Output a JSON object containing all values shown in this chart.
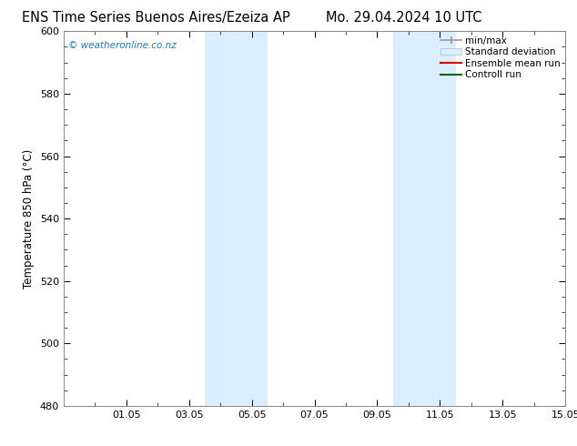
{
  "title_left": "ENS Time Series Buenos Aires/Ezeiza AP",
  "title_right": "Mo. 29.04.2024 10 UTC",
  "ylabel": "Temperature 850 hPa (°C)",
  "watermark": "© weatheronline.co.nz",
  "watermark_color": "#1a7abf",
  "ylim": [
    480,
    600
  ],
  "yticks": [
    480,
    500,
    520,
    540,
    560,
    580,
    600
  ],
  "xlim": [
    0,
    16
  ],
  "x_tick_labels": [
    "01.05",
    "03.05",
    "05.05",
    "07.05",
    "09.05",
    "11.05",
    "13.05",
    "15.05"
  ],
  "x_tick_positions": [
    2,
    4,
    6,
    8,
    10,
    12,
    14,
    16
  ],
  "shaded_bands": [
    {
      "xmin": 4.5,
      "xmax": 6.5
    },
    {
      "xmin": 10.5,
      "xmax": 12.5
    }
  ],
  "shade_color": "#daeeff",
  "background_color": "#ffffff",
  "plot_bg_color": "#ffffff",
  "title_fontsize": 10.5,
  "axis_fontsize": 8.5,
  "tick_fontsize": 8,
  "watermark_fontsize": 7.5,
  "legend_fontsize": 7.5
}
